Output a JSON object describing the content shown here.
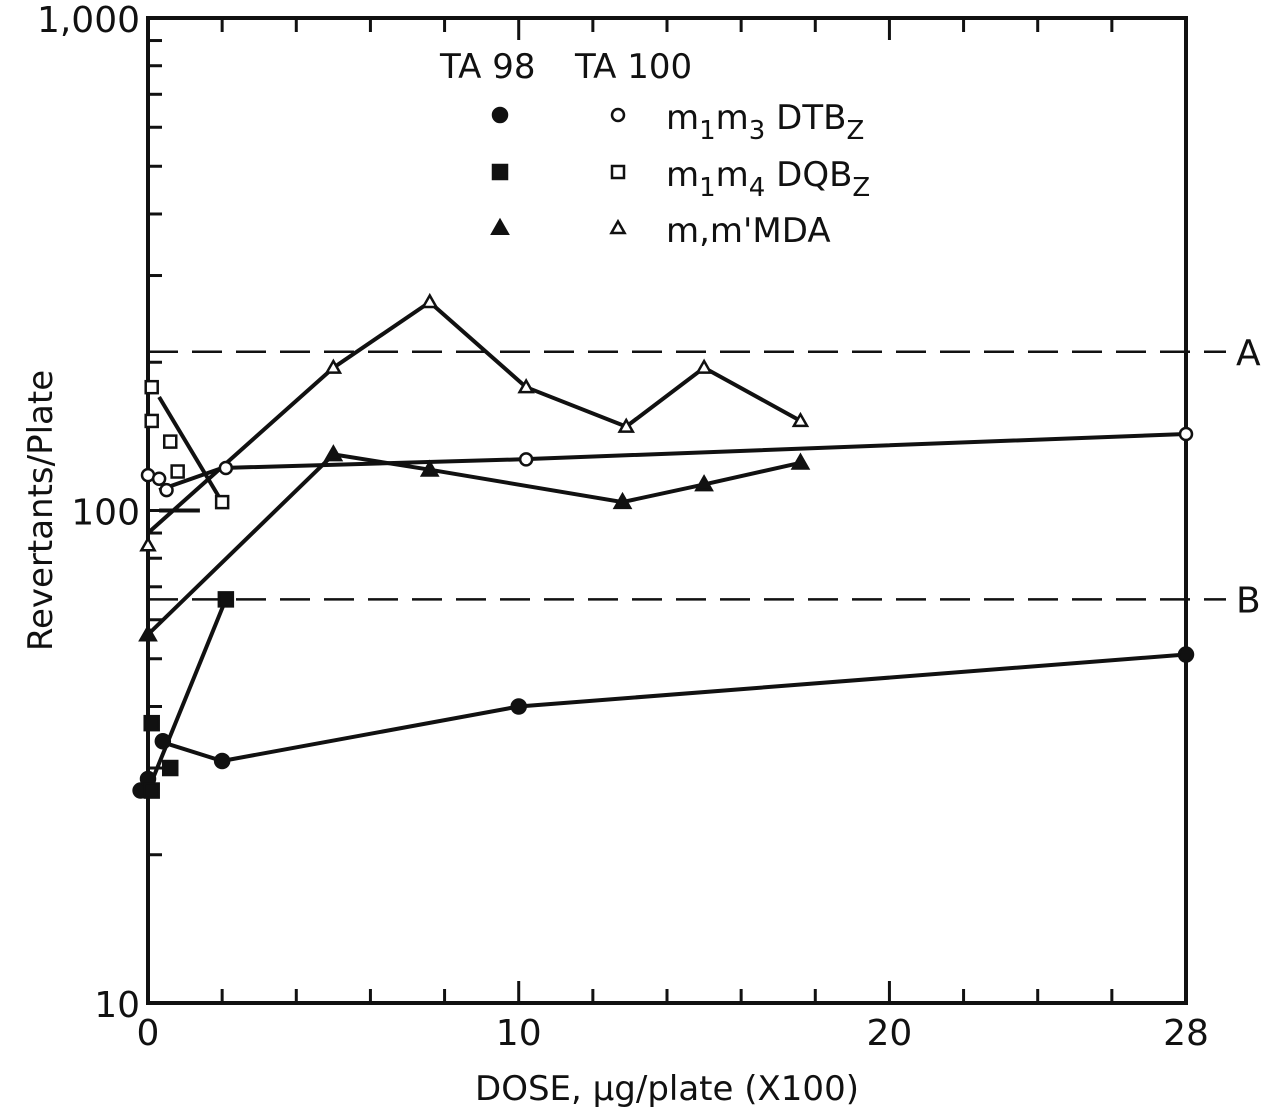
{
  "chart_data": {
    "type": "scatter",
    "xlabel": "DOSE, μg/plate (X100)",
    "ylabel": "Revertants/Plate",
    "x_scale": "linear",
    "y_scale": "log",
    "xlim": [
      0,
      28
    ],
    "ylim": [
      10,
      1000
    ],
    "x_ticks": [
      0,
      10,
      20,
      28
    ],
    "y_ticks": [
      10,
      100,
      1000
    ],
    "y_tick_labels": [
      "10",
      "100",
      "1,000"
    ],
    "x_tick_labels": [
      "0",
      "10",
      "20",
      "28"
    ],
    "grid": false,
    "legend": {
      "placement": "top-center",
      "headers": [
        "TA 98",
        "TA 100"
      ],
      "entries": [
        {
          "label_main": "m",
          "sub1": "1",
          "mid": "m",
          "sub2": "3",
          "tail": " DTB",
          "sub3": "Z",
          "compound": "m1m3 DTBZ",
          "marker": "circle"
        },
        {
          "label_main": "m",
          "sub1": "1",
          "mid": "m",
          "sub2": "4",
          "tail": " DQB",
          "sub3": "Z",
          "compound": "m1m4 DQBZ",
          "marker": "square"
        },
        {
          "label_main": "m,m'MDA",
          "sub1": "",
          "mid": "",
          "sub2": "",
          "tail": "",
          "sub3": "",
          "compound": "m,m'MDA",
          "marker": "triangle"
        }
      ]
    },
    "reference_lines": [
      {
        "label": "A",
        "y": 210
      },
      {
        "label": "B",
        "y": 66
      }
    ],
    "series": [
      {
        "strain": "TA 98",
        "compound": "m1m3 DTBZ",
        "marker": "circle",
        "filled": true,
        "points": [
          [
            -0.2,
            27
          ],
          [
            0,
            28.5
          ],
          [
            0.4,
            34
          ],
          [
            2,
            31
          ],
          [
            10,
            40
          ],
          [
            28,
            51
          ]
        ]
      },
      {
        "strain": "TA 98",
        "compound": "m1m4 DQBZ",
        "marker": "square",
        "filled": true,
        "points": [
          [
            0.1,
            27
          ],
          [
            0.1,
            37
          ],
          [
            0.6,
            30
          ],
          [
            2.1,
            66
          ]
        ]
      },
      {
        "strain": "TA 98",
        "compound": "m,m'MDA",
        "marker": "triangle",
        "filled": true,
        "points": [
          [
            5,
            130
          ],
          [
            7.6,
            121
          ],
          [
            12.8,
            104
          ],
          [
            15,
            113
          ],
          [
            17.6,
            125
          ]
        ]
      },
      {
        "strain": "TA 100",
        "compound": "m1m3 DTBZ",
        "marker": "circle",
        "filled": false,
        "points": [
          [
            0,
            118
          ],
          [
            0.3,
            116
          ],
          [
            0.5,
            110
          ],
          [
            2.1,
            122
          ],
          [
            10.2,
            127
          ],
          [
            28,
            143
          ]
        ]
      },
      {
        "strain": "TA 100",
        "compound": "m1m4 DQBZ",
        "marker": "square",
        "filled": false,
        "points": [
          [
            0.1,
            178
          ],
          [
            0.1,
            152
          ],
          [
            0.6,
            138
          ],
          [
            0.8,
            120
          ],
          [
            2,
            104
          ]
        ]
      },
      {
        "strain": "TA 100",
        "compound": "m,m'MDA",
        "marker": "triangle",
        "filled": false,
        "points": [
          [
            0,
            85
          ],
          [
            5,
            195
          ],
          [
            7.6,
            265
          ],
          [
            10.2,
            178
          ],
          [
            12.9,
            148
          ],
          [
            15,
            195
          ],
          [
            17.6,
            152
          ]
        ]
      }
    ],
    "lines": [
      {
        "points": [
          [
            0,
            27
          ],
          [
            2.1,
            66
          ]
        ]
      },
      {
        "points": [
          [
            0.3,
            34
          ],
          [
            2,
            31
          ],
          [
            10,
            40
          ],
          [
            28,
            51
          ]
        ]
      },
      {
        "points": [
          [
            0,
            56
          ],
          [
            5,
            130
          ]
        ]
      },
      {
        "points": [
          [
            5,
            130
          ],
          [
            7.6,
            121
          ],
          [
            12.8,
            104
          ],
          [
            15,
            113
          ],
          [
            17.6,
            125
          ]
        ]
      },
      {
        "points": [
          [
            0,
            90
          ],
          [
            5,
            195
          ],
          [
            7.6,
            265
          ],
          [
            10.2,
            178
          ],
          [
            12.9,
            148
          ],
          [
            15,
            195
          ],
          [
            17.6,
            152
          ]
        ]
      },
      {
        "points": [
          [
            0.3,
            110
          ],
          [
            2,
            122
          ],
          [
            10,
            127
          ],
          [
            28,
            143
          ]
        ]
      },
      {
        "points": [
          [
            0.3,
            170
          ],
          [
            2,
            104
          ]
        ]
      },
      {
        "points": [
          [
            0.3,
            100
          ],
          [
            1.4,
            100
          ]
        ]
      }
    ],
    "extra_points": [
      {
        "x": 0,
        "y": 56,
        "marker": "triangle",
        "filled": true
      }
    ]
  }
}
